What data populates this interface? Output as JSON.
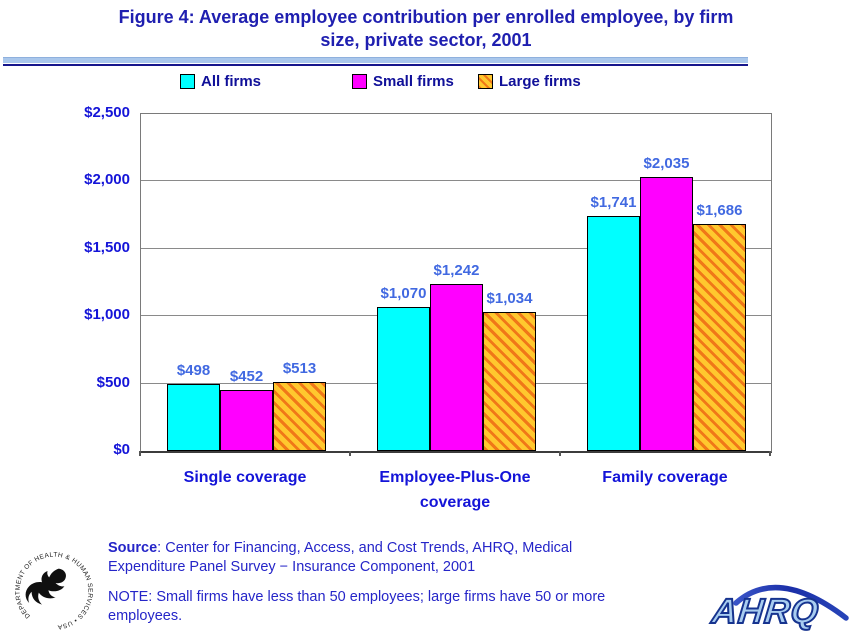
{
  "header": {
    "title_line1": "Figure 4: Average employee contribution per enrolled employee, by firm",
    "title_line2": "size, private sector, 2001"
  },
  "chart_data": {
    "type": "bar",
    "title": "Figure 4: Average employee contribution per enrolled employee, by firm size, private sector, 2001",
    "categories": [
      "Single coverage",
      "Employee-Plus-One coverage",
      "Family coverage"
    ],
    "series": [
      {
        "name": "All firms",
        "values": [
          498,
          1070,
          1741
        ]
      },
      {
        "name": "Small firms",
        "values": [
          452,
          1242,
          2035
        ]
      },
      {
        "name": "Large firms",
        "values": [
          513,
          1034,
          1686
        ]
      }
    ],
    "value_labels": [
      [
        "$498",
        "$1,070",
        "$1,741"
      ],
      [
        "$452",
        "$1,242",
        "$2,035"
      ],
      [
        "$513",
        "$1,034",
        "$1,686"
      ]
    ],
    "ylim": [
      0,
      2500
    ],
    "yticks": [
      {
        "value": 0,
        "label": "$0"
      },
      {
        "value": 500,
        "label": "$500"
      },
      {
        "value": 1000,
        "label": "$1,000"
      },
      {
        "value": 1500,
        "label": "$1,500"
      },
      {
        "value": 2000,
        "label": "$2,000"
      },
      {
        "value": 2500,
        "label": "$2,500"
      }
    ],
    "grid": true,
    "legend_position": "top"
  },
  "colors": {
    "all_firms": "#00ffff",
    "small_firms": "#ff00ff",
    "large_firms_base": "#ffc82e",
    "large_firms_stripe": "#f07818",
    "title_text": "#1f1fb0",
    "axis_label_text": "#1414d8",
    "data_label_text": "#4169e1",
    "legend_text": "#101099",
    "footer_text": "#2525c8"
  },
  "footer": {
    "source_label": "Source",
    "source_line1_rest": ": Center for Financing, Access, and Cost Trends, AHRQ, Medical",
    "source_line2": "Expenditure Panel Survey − Insurance Component, 2001",
    "note_line1": "NOTE: Small firms have less than 50 employees; large firms have 50 or more",
    "note_line2": "employees.",
    "hhs_seal_text": "DEPARTMENT OF HEALTH & HUMAN SERVICES • USA",
    "ahrq_text": "AHRQ"
  }
}
